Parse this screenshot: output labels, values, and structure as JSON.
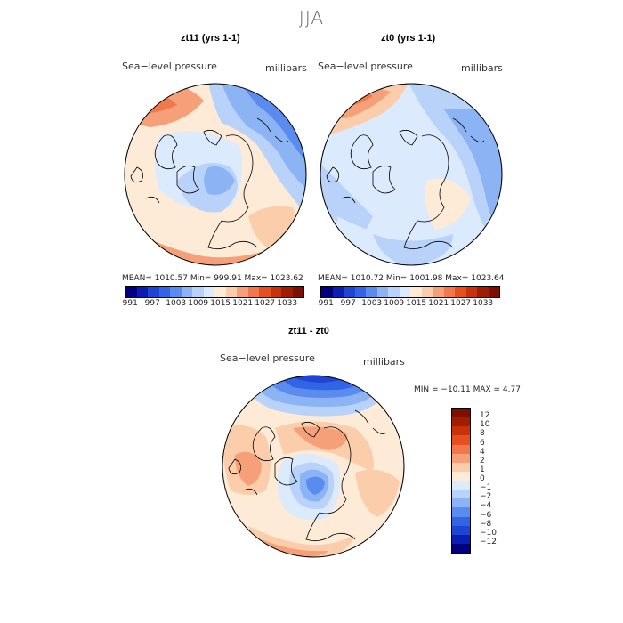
{
  "figure": {
    "season": "JJA"
  },
  "panels": [
    {
      "title": "zt11 (yrs 1-1)",
      "field_label": "Sea−level pressure",
      "units_label": "millibars",
      "stats": "MEAN= 1010.57   Min= 999.91   Max= 1023.62"
    },
    {
      "title": "zt0 (yrs 1-1)",
      "field_label": "Sea−level pressure",
      "units_label": "millibars",
      "stats": "MEAN= 1010.72   Min= 1001.98   Max= 1023.64"
    },
    {
      "title": "zt11 - zt0",
      "field_label": "Sea−level pressure",
      "units_label": "millibars",
      "stats": "MIN = −10.11 MAX =    4.77"
    }
  ],
  "colorbar_top": {
    "tick_labels": [
      "991",
      "997",
      "1003",
      "1009",
      "1015",
      "1021",
      "1027",
      "1033"
    ],
    "colors": [
      "#00007f",
      "#0a1eb4",
      "#1e46d2",
      "#3264e6",
      "#5a8cf0",
      "#8cb4f5",
      "#b9d2fa",
      "#dceafd",
      "#fdebd7",
      "#fbcdaa",
      "#f5a078",
      "#f0784b",
      "#e6501e",
      "#c8320a",
      "#a01e00",
      "#7d0f00"
    ]
  },
  "colorbar_diff": {
    "tick_labels": [
      "12",
      "10",
      "8",
      "6",
      "4",
      "2",
      "1",
      "0",
      "−1",
      "−2",
      "−4",
      "−6",
      "−8",
      "−10",
      "−12"
    ],
    "colors": [
      "#7d0f00",
      "#a01e00",
      "#c8320a",
      "#e6501e",
      "#f0784b",
      "#f5a078",
      "#fbcdaa",
      "#fdebd7",
      "#dceafd",
      "#b9d2fa",
      "#8cb4f5",
      "#5a8cf0",
      "#3264e6",
      "#1e46d2",
      "#0a1eb4",
      "#00007f"
    ]
  }
}
